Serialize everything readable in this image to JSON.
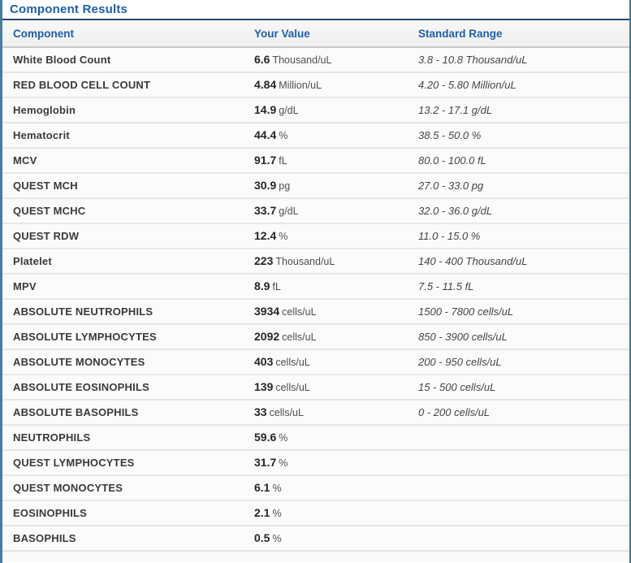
{
  "page": {
    "title": "Component Results"
  },
  "colors": {
    "accent_blue": "#1d5fa9",
    "title_underline_navy": "#24496b",
    "side_border_steel_blue": "#4a7d9b",
    "row_divider_gray": "#e7e7e7",
    "header_bg_gray": "#f3f3f3"
  },
  "table": {
    "headers": [
      "Component",
      "Your Value",
      "Standard Range"
    ],
    "rows": [
      {
        "component": "White Blood Count",
        "value": "6.6",
        "unit": "Thousand/uL",
        "range": "3.8 - 10.8 Thousand/uL"
      },
      {
        "component": "RED BLOOD CELL COUNT",
        "value": "4.84",
        "unit": "Million/uL",
        "range": "4.20 - 5.80 Million/uL"
      },
      {
        "component": "Hemoglobin",
        "value": "14.9",
        "unit": "g/dL",
        "range": "13.2 - 17.1 g/dL"
      },
      {
        "component": "Hematocrit",
        "value": "44.4",
        "unit": "%",
        "range": "38.5 - 50.0 %"
      },
      {
        "component": "MCV",
        "value": "91.7",
        "unit": "fL",
        "range": "80.0 - 100.0 fL"
      },
      {
        "component": "QUEST MCH",
        "value": "30.9",
        "unit": "pg",
        "range": "27.0 - 33.0 pg"
      },
      {
        "component": "QUEST MCHC",
        "value": "33.7",
        "unit": "g/dL",
        "range": "32.0 - 36.0 g/dL"
      },
      {
        "component": "QUEST RDW",
        "value": "12.4",
        "unit": "%",
        "range": "11.0 - 15.0 %"
      },
      {
        "component": "Platelet",
        "value": "223",
        "unit": "Thousand/uL",
        "range": "140 - 400 Thousand/uL"
      },
      {
        "component": "MPV",
        "value": "8.9",
        "unit": "fL",
        "range": "7.5 - 11.5 fL"
      },
      {
        "component": "ABSOLUTE NEUTROPHILS",
        "value": "3934",
        "unit": "cells/uL",
        "range": "1500 - 7800 cells/uL"
      },
      {
        "component": "ABSOLUTE LYMPHOCYTES",
        "value": "2092",
        "unit": "cells/uL",
        "range": "850 - 3900 cells/uL"
      },
      {
        "component": "ABSOLUTE MONOCYTES",
        "value": "403",
        "unit": "cells/uL",
        "range": "200 - 950 cells/uL"
      },
      {
        "component": "ABSOLUTE EOSINOPHILS",
        "value": "139",
        "unit": "cells/uL",
        "range": "15 - 500 cells/uL"
      },
      {
        "component": "ABSOLUTE BASOPHILS",
        "value": "33",
        "unit": "cells/uL",
        "range": "0 - 200 cells/uL"
      },
      {
        "component": "NEUTROPHILS",
        "value": "59.6",
        "unit": "%",
        "range": ""
      },
      {
        "component": "QUEST LYMPHOCYTES",
        "value": "31.7",
        "unit": "%",
        "range": ""
      },
      {
        "component": "QUEST MONOCYTES",
        "value": "6.1",
        "unit": "%",
        "range": ""
      },
      {
        "component": "EOSINOPHILS",
        "value": "2.1",
        "unit": "%",
        "range": ""
      },
      {
        "component": "BASOPHILS",
        "value": "0.5",
        "unit": "%",
        "range": ""
      }
    ]
  }
}
